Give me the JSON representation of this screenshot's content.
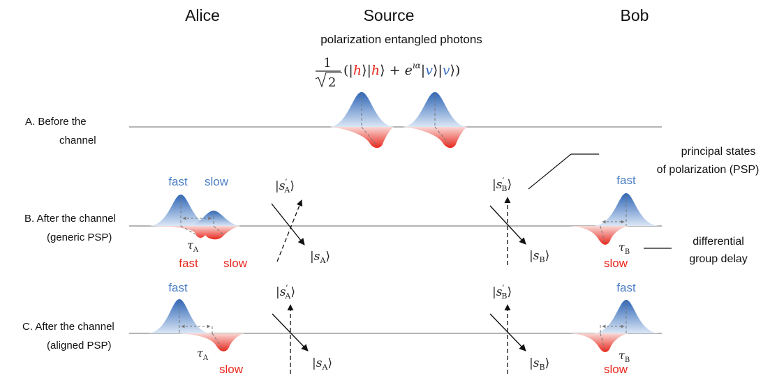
{
  "header": {
    "alice": "Alice",
    "source": "Source",
    "bob": "Bob",
    "subtitle": "polarization entangled photons",
    "state_prefactor": "1",
    "state_sqrt": "2",
    "state": {
      "open": "(|",
      "h1": "h",
      "k1": "⟩|",
      "h2": "h",
      "k2": "⟩ + ",
      "e": "e",
      "exp": "ıα",
      "k3": "|",
      "v1": "v",
      "k4": "⟩|",
      "v2": "v",
      "close": "⟩)"
    }
  },
  "rows": {
    "a": {
      "line1": "A. Before the",
      "line2": "channel"
    },
    "b": {
      "line1": "B. After the channel",
      "line2": "(generic PSP)"
    },
    "c": {
      "line1": "C. After the channel",
      "line2": "(aligned PSP)"
    }
  },
  "labels": {
    "fast": "fast",
    "slow": "slow",
    "tau": "τ",
    "tau_sub_a": "A",
    "tau_sub_b": "B",
    "s": "s",
    "s_prime": "′",
    "sub_a": "A",
    "sub_b": "B",
    "ket_open": "|",
    "ket_close": "⟩"
  },
  "annotations": {
    "psp_line1": "principal states",
    "psp_line2": "of polarization (PSP)",
    "dgd_line1": "differential",
    "dgd_line2": "group delay"
  },
  "colors": {
    "fast_blue": "#4a7ec4",
    "slow_red": "#e8281d",
    "pulse_blue_dark": "#2f66b6",
    "pulse_blue_light": "#dbe7f6",
    "pulse_red_dark": "#e8281d",
    "pulse_red_light": "#f9d9d6",
    "axis_line": "#888888",
    "math_text": "#222222"
  }
}
